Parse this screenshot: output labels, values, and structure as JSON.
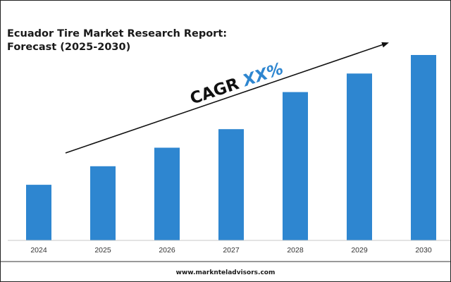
{
  "chart_data": {
    "type": "bar",
    "title_line1": "Ecuador Tire Market Research Report:",
    "title_line2": "Forecast (2025-2030)",
    "categories": [
      "2024",
      "2025",
      "2026",
      "2027",
      "2028",
      "2029",
      "2030"
    ],
    "values": [
      30,
      40,
      50,
      60,
      80,
      90,
      100
    ],
    "ylim": [
      0,
      100
    ],
    "bar_color": "#2e86d0",
    "grid": false,
    "legend": "none",
    "annotation": {
      "label_prefix": "CAGR ",
      "label_value": "XX%",
      "prefix_color": "#111111",
      "value_color": "#2e86d0"
    }
  },
  "footer": {
    "url": "www.marknteladvisors.com"
  }
}
